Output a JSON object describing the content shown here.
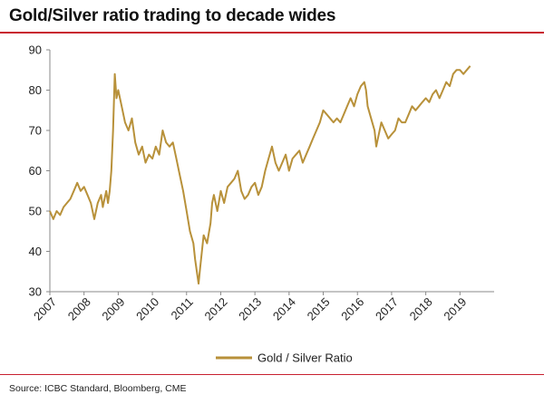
{
  "header": {
    "title": "Gold/Silver ratio trading to decade wides"
  },
  "footer": {
    "source": "Source: ICBC Standard, Bloomberg, CME"
  },
  "colors": {
    "accent_rule": "#c8202f",
    "series": "#b8913a",
    "axis": "#8a8a8a"
  },
  "chart_data": {
    "type": "line",
    "title": "Gold/Silver ratio trading to decade wides",
    "xlabel": "",
    "ylabel": "",
    "xlim": [
      2007.0,
      2020.0
    ],
    "ylim": [
      30,
      90
    ],
    "yticks": [
      30,
      40,
      50,
      60,
      70,
      80,
      90
    ],
    "xticks": [
      2007,
      2008,
      2009,
      2010,
      2011,
      2012,
      2013,
      2014,
      2015,
      2016,
      2017,
      2018,
      2019
    ],
    "legend": "bottom-center",
    "grid": false,
    "series": [
      {
        "name": "Gold / Silver Ratio",
        "x": [
          2007.0,
          2007.1,
          2007.2,
          2007.3,
          2007.4,
          2007.5,
          2007.6,
          2007.7,
          2007.8,
          2007.9,
          2008.0,
          2008.1,
          2008.2,
          2008.3,
          2008.4,
          2008.5,
          2008.55,
          2008.6,
          2008.65,
          2008.7,
          2008.75,
          2008.8,
          2008.85,
          2008.9,
          2008.95,
          2009.0,
          2009.1,
          2009.2,
          2009.3,
          2009.4,
          2009.5,
          2009.6,
          2009.7,
          2009.8,
          2009.9,
          2010.0,
          2010.1,
          2010.2,
          2010.3,
          2010.4,
          2010.5,
          2010.6,
          2010.7,
          2010.8,
          2010.9,
          2011.0,
          2011.1,
          2011.2,
          2011.25,
          2011.3,
          2011.35,
          2011.4,
          2011.5,
          2011.6,
          2011.7,
          2011.75,
          2011.8,
          2011.9,
          2012.0,
          2012.1,
          2012.2,
          2012.3,
          2012.4,
          2012.5,
          2012.6,
          2012.7,
          2012.8,
          2012.9,
          2013.0,
          2013.1,
          2013.2,
          2013.3,
          2013.4,
          2013.5,
          2013.6,
          2013.7,
          2013.8,
          2013.9,
          2014.0,
          2014.1,
          2014.2,
          2014.3,
          2014.4,
          2014.5,
          2014.6,
          2014.7,
          2014.8,
          2014.9,
          2015.0,
          2015.1,
          2015.2,
          2015.3,
          2015.4,
          2015.5,
          2015.6,
          2015.7,
          2015.8,
          2015.9,
          2016.0,
          2016.1,
          2016.2,
          2016.25,
          2016.3,
          2016.4,
          2016.5,
          2016.55,
          2016.6,
          2016.7,
          2016.8,
          2016.9,
          2017.0,
          2017.1,
          2017.2,
          2017.3,
          2017.4,
          2017.5,
          2017.6,
          2017.7,
          2017.8,
          2017.9,
          2018.0,
          2018.1,
          2018.2,
          2018.3,
          2018.4,
          2018.5,
          2018.6,
          2018.7,
          2018.8,
          2018.9,
          2019.0,
          2019.1,
          2019.2,
          2019.3
        ],
        "values": [
          50,
          48,
          50,
          49,
          51,
          52,
          53,
          55,
          57,
          55,
          56,
          54,
          52,
          48,
          52,
          54,
          51,
          53,
          55,
          52,
          55,
          60,
          70,
          84,
          78,
          80,
          76,
          72,
          70,
          73,
          67,
          64,
          66,
          62,
          64,
          63,
          66,
          64,
          70,
          67,
          66,
          67,
          63,
          59,
          55,
          50,
          45,
          42,
          38,
          35,
          32,
          36,
          44,
          42,
          47,
          52,
          54,
          50,
          55,
          52,
          56,
          57,
          58,
          60,
          55,
          53,
          54,
          56,
          57,
          54,
          56,
          60,
          63,
          66,
          62,
          60,
          62,
          64,
          60,
          63,
          64,
          65,
          62,
          64,
          66,
          68,
          70,
          72,
          75,
          74,
          73,
          72,
          73,
          72,
          74,
          76,
          78,
          76,
          79,
          81,
          82,
          80,
          76,
          73,
          70,
          66,
          68,
          72,
          70,
          68,
          69,
          70,
          73,
          72,
          72,
          74,
          76,
          75,
          76,
          77,
          78,
          77,
          79,
          80,
          78,
          80,
          82,
          81,
          84,
          85,
          85,
          84,
          85,
          86
        ]
      }
    ]
  }
}
